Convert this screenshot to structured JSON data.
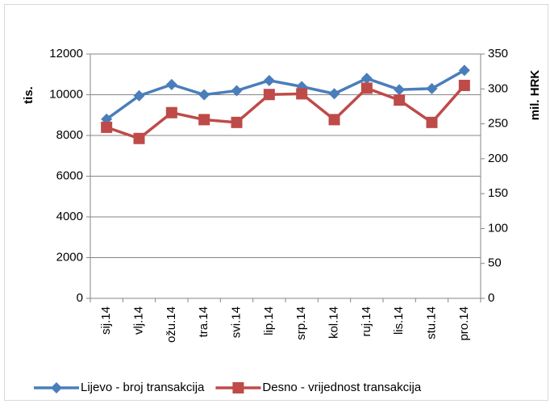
{
  "chart_data": {
    "type": "line",
    "y_label": "tis.",
    "y2_label": "mil. HRK",
    "categories": [
      "sij.14",
      "vlj.14",
      "ožu.14",
      "tra.14",
      "svi.14",
      "lip.14",
      "srp.14",
      "kol.14",
      "ruj.14",
      "lis.14",
      "stu.14",
      "pro.14"
    ],
    "series": [
      {
        "name": "Lijevo - broj transakcija",
        "color": "#4a7ebb",
        "marker": "diamond",
        "values": [
          8800,
          9950,
          10500,
          10000,
          10200,
          10700,
          10400,
          10050,
          10800,
          10250,
          10300,
          11200
        ]
      },
      {
        "name": "Desno - vrijednost transakcija",
        "color": "#be4b48",
        "marker": "square",
        "axis": "y2",
        "values": [
          245,
          229,
          266,
          256,
          252,
          292,
          293,
          256,
          301,
          284,
          252,
          305
        ]
      }
    ],
    "ylim": [
      0,
      12000
    ],
    "yticks": [
      0,
      2000,
      4000,
      6000,
      8000,
      10000,
      12000
    ],
    "y2lim": [
      0,
      350
    ],
    "y2ticks": [
      0,
      50,
      100,
      150,
      200,
      250,
      300,
      350
    ],
    "grid": true,
    "legend": "bottom"
  }
}
